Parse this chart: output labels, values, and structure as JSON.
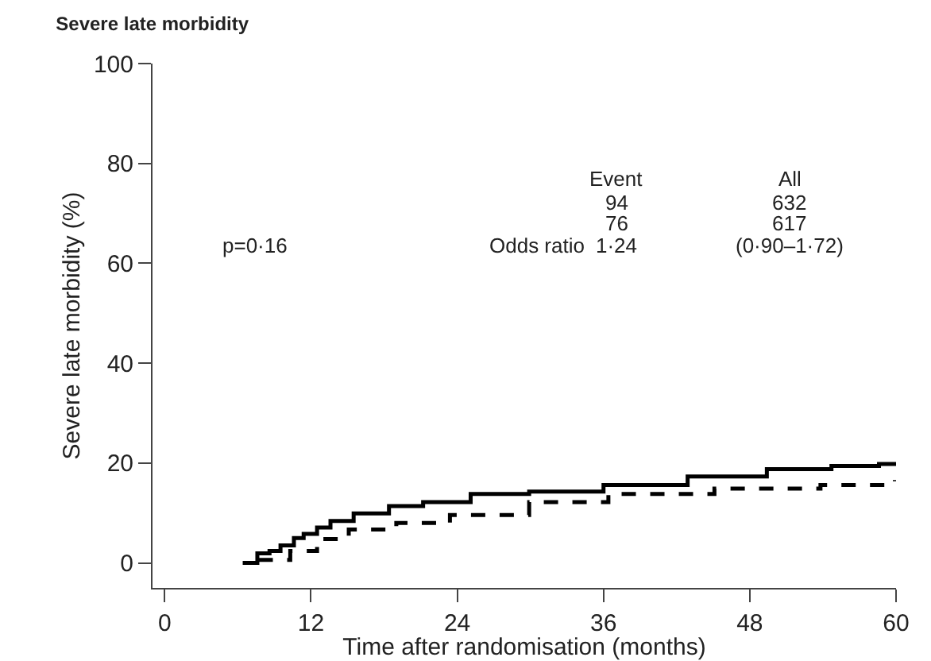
{
  "chart_data": {
    "type": "step",
    "title": "Severe late morbidity",
    "xlabel": "Time after randomisation (months)",
    "ylabel": "Severe late morbidity (%)",
    "xlim": [
      -1,
      60
    ],
    "xticks": [
      0,
      12,
      24,
      36,
      48,
      60
    ],
    "ylim": [
      -5,
      100
    ],
    "yticks": [
      0,
      20,
      40,
      60,
      80,
      100
    ],
    "annotations": [
      "Event",
      "All",
      "94",
      "632",
      "76",
      "617",
      "p=0·16",
      "Odds ratio",
      "1·24",
      "(0·90–1·72)"
    ],
    "series": [
      {
        "color": "#000000",
        "line_style": "solid",
        "x": [
          6.4,
          7.6,
          8.6,
          9.5,
          10.6,
          11.4,
          12.5,
          13.6,
          15.5,
          18.4,
          21.2,
          25.1,
          29.9,
          36,
          42.9,
          49.4,
          54.7,
          58.6,
          60
        ],
        "values": [
          0,
          1.9,
          2.4,
          3.5,
          5.0,
          5.8,
          7.1,
          8.4,
          9.9,
          11.4,
          12.2,
          13.8,
          14.3,
          15.6,
          17.3,
          18.8,
          19.4,
          19.8,
          19.8
        ]
      },
      {
        "color": "#000000",
        "line_style": "dashed",
        "x": [
          7.7,
          10.3,
          12.5,
          15.1,
          19,
          23.4,
          29.9,
          36.4,
          45.1,
          53.8,
          59.9
        ],
        "values": [
          0.6,
          2.4,
          4.8,
          6.7,
          8.0,
          9.6,
          12.2,
          13.8,
          14.9,
          15.6,
          16.6
        ]
      }
    ]
  }
}
